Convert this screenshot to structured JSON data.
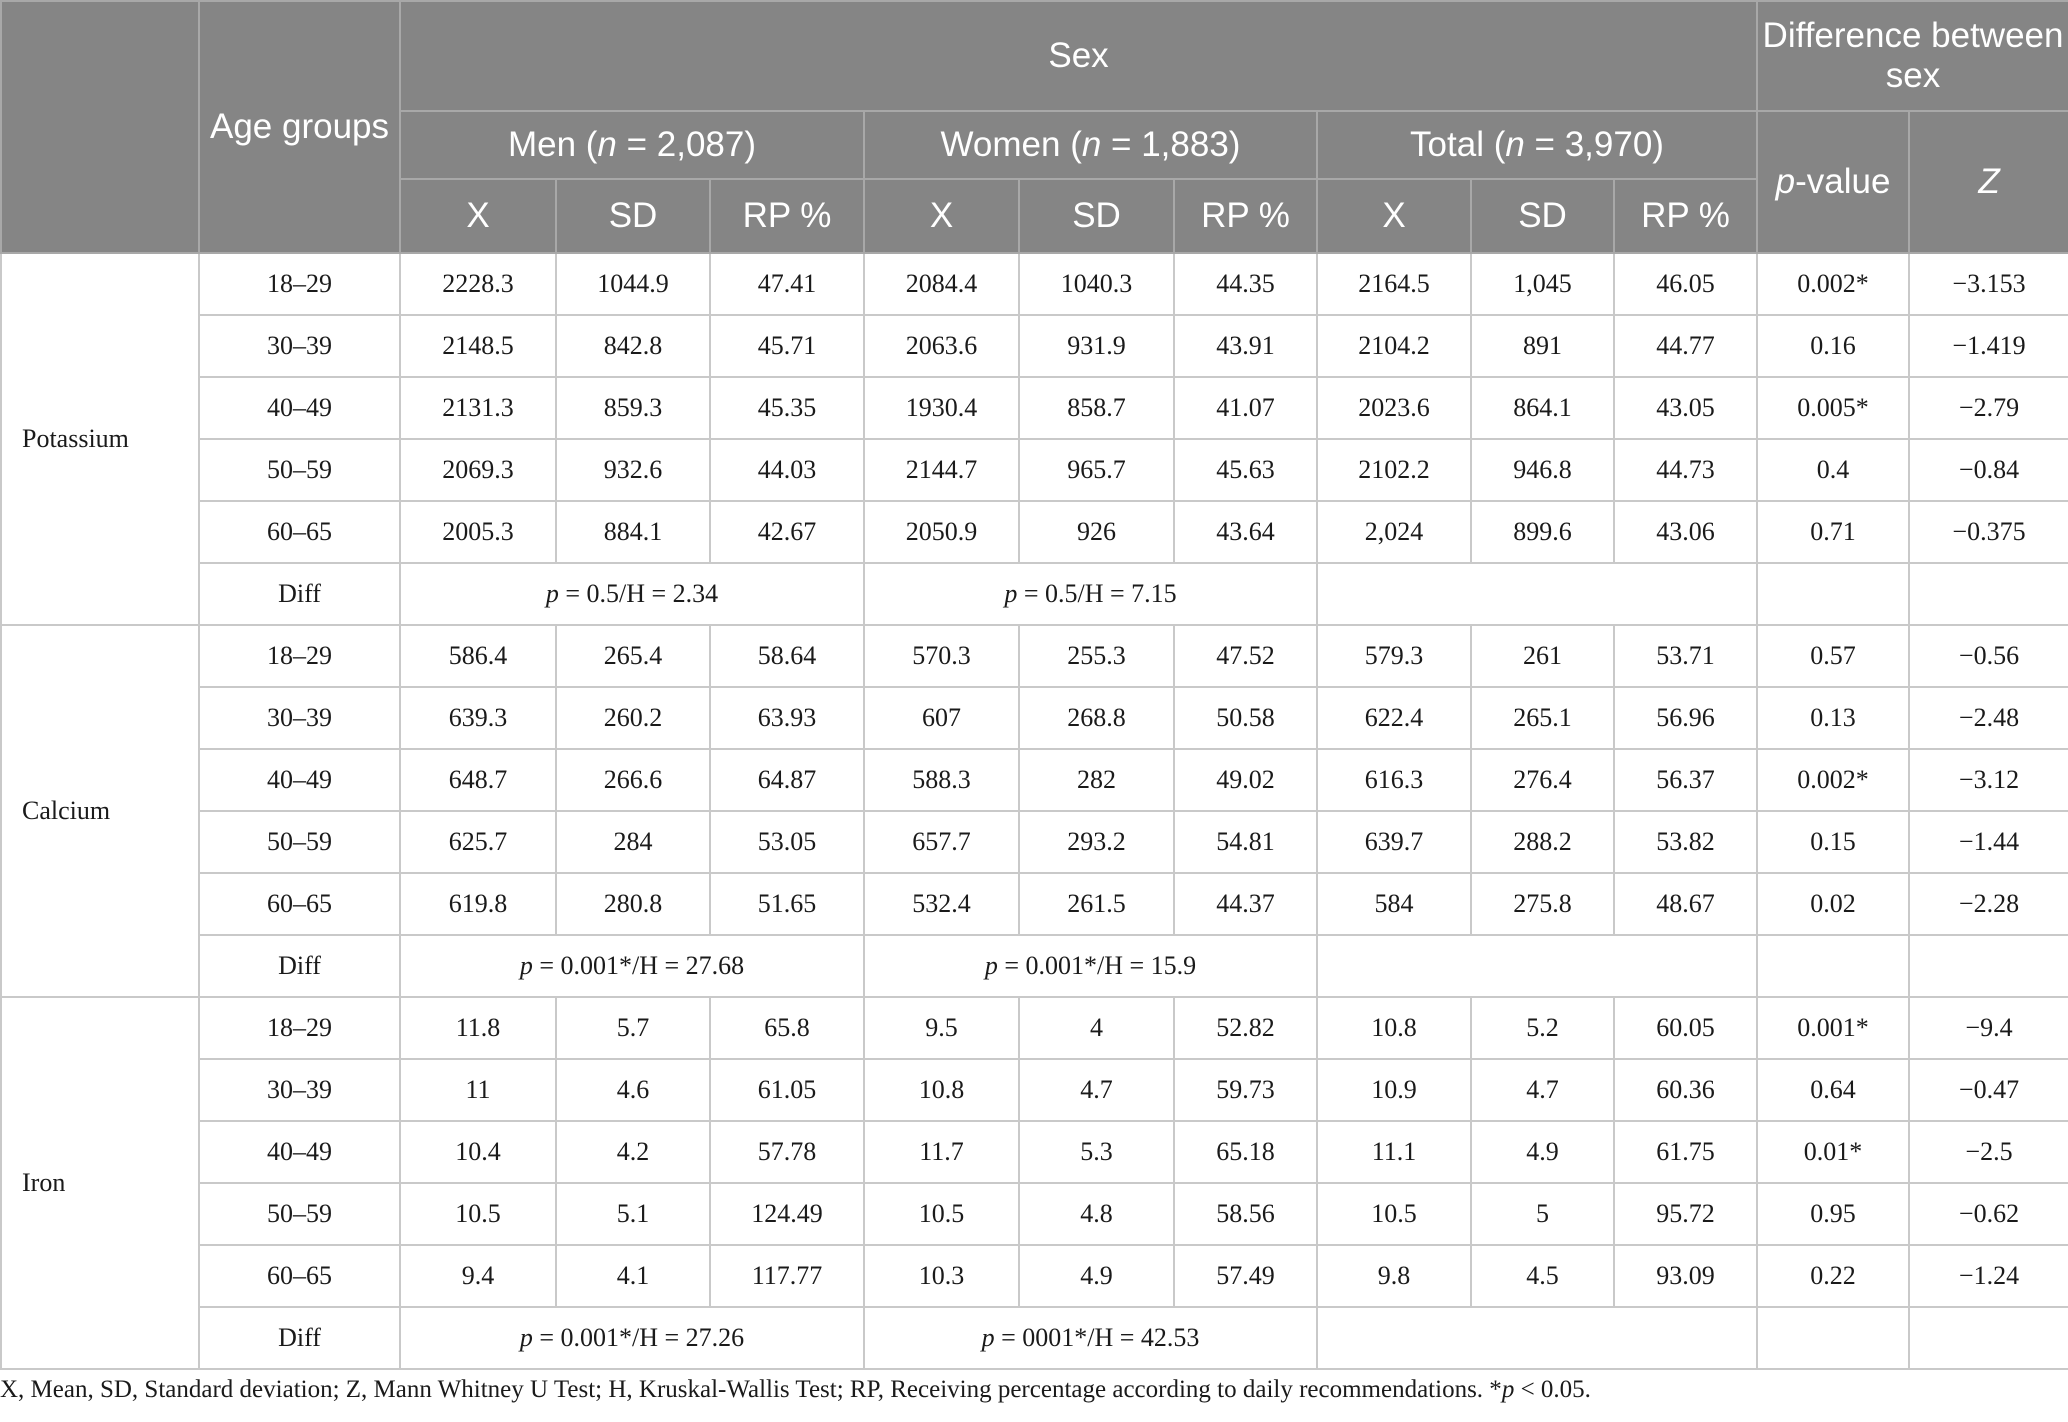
{
  "header": {
    "age_groups": "Age groups",
    "sex": "Sex",
    "difference_between_sex": "Difference between sex",
    "men_label": "Men (",
    "men_n": "n",
    "men_count": " = 2,087)",
    "women_label": "Women (",
    "women_n": "n",
    "women_count": " = 1,883)",
    "total_label": "Total (",
    "total_n": "n",
    "total_count": " = 3,970)",
    "p": "p",
    "p_suffix": "-value",
    "z": "Z",
    "sub_columns": [
      "X",
      "SD",
      "RP %",
      "X",
      "SD",
      "RP %",
      "X",
      "SD",
      "RP %"
    ]
  },
  "nutrients": [
    {
      "name": "Potassium",
      "rows": [
        {
          "age": "18–29",
          "cells": [
            "2228.3",
            "1044.9",
            "47.41",
            "2084.4",
            "1040.3",
            "44.35",
            "2164.5",
            "1,045",
            "46.05",
            "0.002*",
            "−3.153"
          ]
        },
        {
          "age": "30–39",
          "cells": [
            "2148.5",
            "842.8",
            "45.71",
            "2063.6",
            "931.9",
            "43.91",
            "2104.2",
            "891",
            "44.77",
            "0.16",
            "−1.419"
          ]
        },
        {
          "age": "40–49",
          "cells": [
            "2131.3",
            "859.3",
            "45.35",
            "1930.4",
            "858.7",
            "41.07",
            "2023.6",
            "864.1",
            "43.05",
            "0.005*",
            "−2.79"
          ]
        },
        {
          "age": "50–59",
          "cells": [
            "2069.3",
            "932.6",
            "44.03",
            "2144.7",
            "965.7",
            "45.63",
            "2102.2",
            "946.8",
            "44.73",
            "0.4",
            "−0.84"
          ]
        },
        {
          "age": "60–65",
          "cells": [
            "2005.3",
            "884.1",
            "42.67",
            "2050.9",
            "926",
            "43.64",
            "2,024",
            "899.6",
            "43.06",
            "0.71",
            "−0.375"
          ]
        }
      ],
      "diff": {
        "label": "Diff",
        "men_p": "p",
        "men_rest": " = 0.5/H = 2.34",
        "women_p": "p",
        "women_rest": " = 0.5/H = 7.15"
      }
    },
    {
      "name": "Calcium",
      "rows": [
        {
          "age": "18–29",
          "cells": [
            "586.4",
            "265.4",
            "58.64",
            "570.3",
            "255.3",
            "47.52",
            "579.3",
            "261",
            "53.71",
            "0.57",
            "−0.56"
          ]
        },
        {
          "age": "30–39",
          "cells": [
            "639.3",
            "260.2",
            "63.93",
            "607",
            "268.8",
            "50.58",
            "622.4",
            "265.1",
            "56.96",
            "0.13",
            "−2.48"
          ]
        },
        {
          "age": "40–49",
          "cells": [
            "648.7",
            "266.6",
            "64.87",
            "588.3",
            "282",
            "49.02",
            "616.3",
            "276.4",
            "56.37",
            "0.002*",
            "−3.12"
          ]
        },
        {
          "age": "50–59",
          "cells": [
            "625.7",
            "284",
            "53.05",
            "657.7",
            "293.2",
            "54.81",
            "639.7",
            "288.2",
            "53.82",
            "0.15",
            "−1.44"
          ]
        },
        {
          "age": "60–65",
          "cells": [
            "619.8",
            "280.8",
            "51.65",
            "532.4",
            "261.5",
            "44.37",
            "584",
            "275.8",
            "48.67",
            "0.02",
            "−2.28"
          ]
        }
      ],
      "diff": {
        "label": "Diff",
        "men_p": "p",
        "men_rest": " = 0.001*/H = 27.68",
        "women_p": "p",
        "women_rest": " = 0.001*/H = 15.9"
      }
    },
    {
      "name": "Iron",
      "rows": [
        {
          "age": "18–29",
          "cells": [
            "11.8",
            "5.7",
            "65.8",
            "9.5",
            "4",
            "52.82",
            "10.8",
            "5.2",
            "60.05",
            "0.001*",
            "−9.4"
          ]
        },
        {
          "age": "30–39",
          "cells": [
            "11",
            "4.6",
            "61.05",
            "10.8",
            "4.7",
            "59.73",
            "10.9",
            "4.7",
            "60.36",
            "0.64",
            "−0.47"
          ]
        },
        {
          "age": "40–49",
          "cells": [
            "10.4",
            "4.2",
            "57.78",
            "11.7",
            "5.3",
            "65.18",
            "11.1",
            "4.9",
            "61.75",
            "0.01*",
            "−2.5"
          ]
        },
        {
          "age": "50–59",
          "cells": [
            "10.5",
            "5.1",
            "124.49",
            "10.5",
            "4.8",
            "58.56",
            "10.5",
            "5",
            "95.72",
            "0.95",
            "−0.62"
          ]
        },
        {
          "age": "60–65",
          "cells": [
            "9.4",
            "4.1",
            "117.77",
            "10.3",
            "4.9",
            "57.49",
            "9.8",
            "4.5",
            "93.09",
            "0.22",
            "−1.24"
          ]
        }
      ],
      "diff": {
        "label": "Diff",
        "men_p": "p",
        "men_rest": " = 0.001*/H = 27.26",
        "women_p": "p",
        "women_rest": " = 0001*/H = 42.53"
      }
    }
  ],
  "footnote": {
    "text": "X, Mean, SD, Standard deviation; Z, Mann Whitney U Test; H, Kruskal-Wallis Test; RP, Receiving percentage according to daily recommendations. *",
    "p": "p",
    "tail": " < 0.05."
  }
}
